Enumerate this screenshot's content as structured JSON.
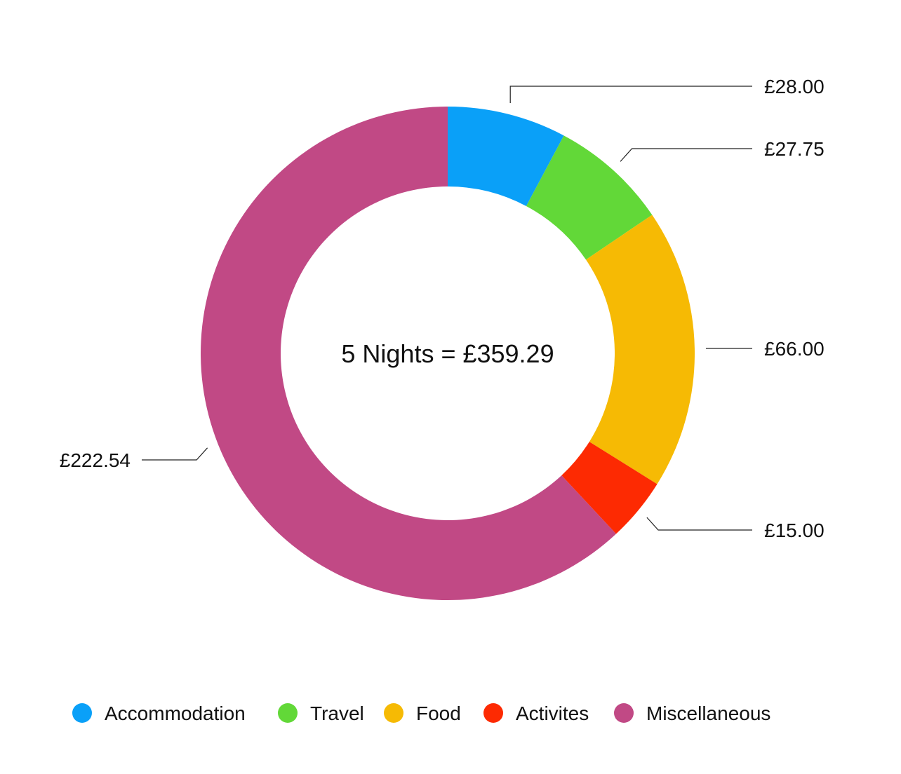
{
  "chart_data": {
    "type": "pie",
    "variant": "donut",
    "center_label": "5 Nights = £359.29",
    "slices": [
      {
        "name": "Accommodation",
        "value": 28.0,
        "label": "£28.00",
        "color": "#0aa0f8"
      },
      {
        "name": "Travel",
        "value": 27.75,
        "label": "£27.75",
        "color": "#62d838"
      },
      {
        "name": "Food",
        "value": 66.0,
        "label": "£66.00",
        "color": "#f6ba04"
      },
      {
        "name": "Activites",
        "value": 15.0,
        "label": "£15.00",
        "color": "#fd2a02"
      },
      {
        "name": "Miscellaneous",
        "value": 222.54,
        "label": "£222.54",
        "color": "#c14985"
      }
    ],
    "legend_position": "bottom"
  }
}
